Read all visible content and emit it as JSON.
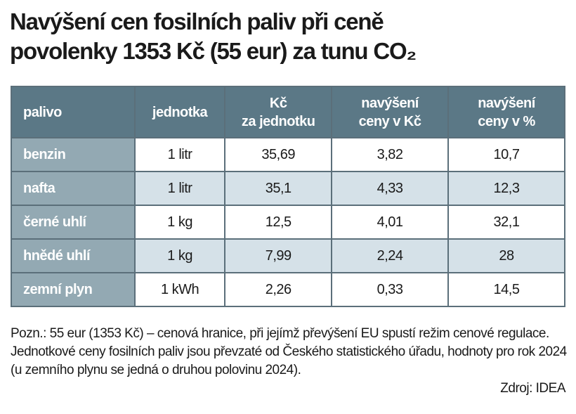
{
  "header": {
    "title": "Navýšení cen fosilních paliv při ceně\npovolenky 1353 Kč (55 eur) za tunu CO₂"
  },
  "table": {
    "columns": [
      "palivo",
      "jednotka",
      "Kč\nza jednotku",
      "navýšení\nceny v Kč",
      "navýšení\nceny v %"
    ],
    "rows": [
      [
        "benzin",
        "1 litr",
        "35,69",
        "3,82",
        "10,7"
      ],
      [
        "nafta",
        "1 litr",
        "35,1",
        "4,33",
        "12,3"
      ],
      [
        "černé uhlí",
        "1 kg",
        "12,5",
        "4,01",
        "32,1"
      ],
      [
        "hnědé uhlí",
        "1 kg",
        "7,99",
        "2,24",
        "28"
      ],
      [
        "zemní plyn",
        "1 kWh",
        "2,26",
        "0,33",
        "14,5"
      ]
    ]
  },
  "footer": {
    "note": "Pozn.: 55 eur (1353 Kč) – cenová hranice, při jejímž převýšení EU spustí režim cenové regulace. Jednotkové ceny fosilních paliv jsou převzaté od Českého statistického úřadu, hodnoty pro rok 2024 (u zemního plynu se jedná o druhou polovinu 2024).",
    "source": "Zdroj: IDEA"
  }
}
